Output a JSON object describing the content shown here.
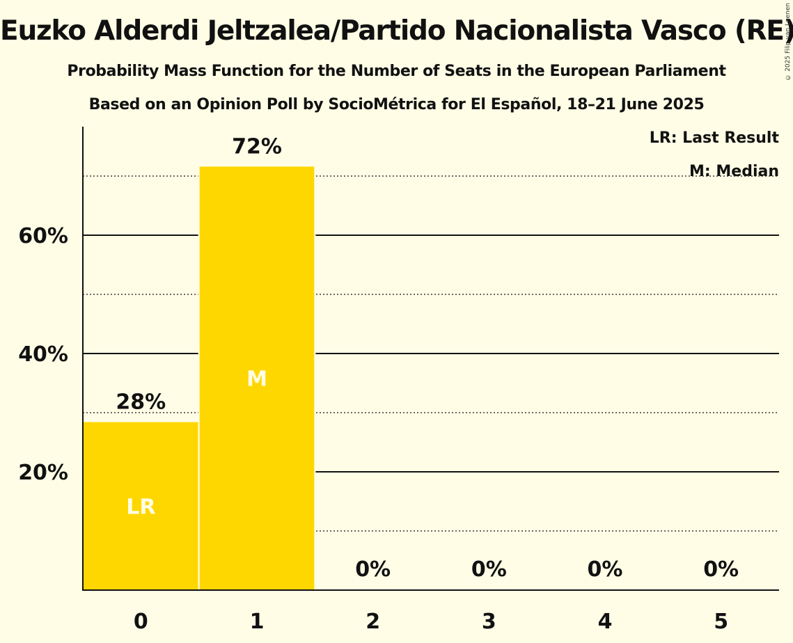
{
  "title": "Euzko Alderdi Jeltzalea/Partido Nacionalista Vasco (RE)",
  "subtitle1": "Probability Mass Function for the Number of Seats in the European Parliament",
  "subtitle2": "Based on an Opinion Poll by SocioMétrica for El Español, 18–21 June 2025",
  "copyright": "© 2025 Filip van Laenen",
  "legend": {
    "lr": "LR: Last Result",
    "m": "M: Median"
  },
  "colors": {
    "background": "#FFFDE6",
    "bar": "#FFD700",
    "text": "#111111"
  },
  "chart_data": {
    "type": "bar",
    "categories": [
      "0",
      "1",
      "2",
      "3",
      "4",
      "5"
    ],
    "values": [
      28.4,
      71.6,
      0,
      0,
      0,
      0
    ],
    "value_labels": [
      "28%",
      "72%",
      "0%",
      "0%",
      "0%",
      "0%"
    ],
    "bar_markers": [
      "LR",
      "M",
      "",
      "",
      "",
      ""
    ],
    "y_ticks": [
      20,
      40,
      60
    ],
    "y_tick_labels": [
      "20%",
      "40%",
      "60%"
    ],
    "y_minor_ticks": [
      10,
      30,
      50,
      70
    ],
    "ylim": [
      0,
      78
    ],
    "grid": true,
    "legend_position": "top-right"
  }
}
